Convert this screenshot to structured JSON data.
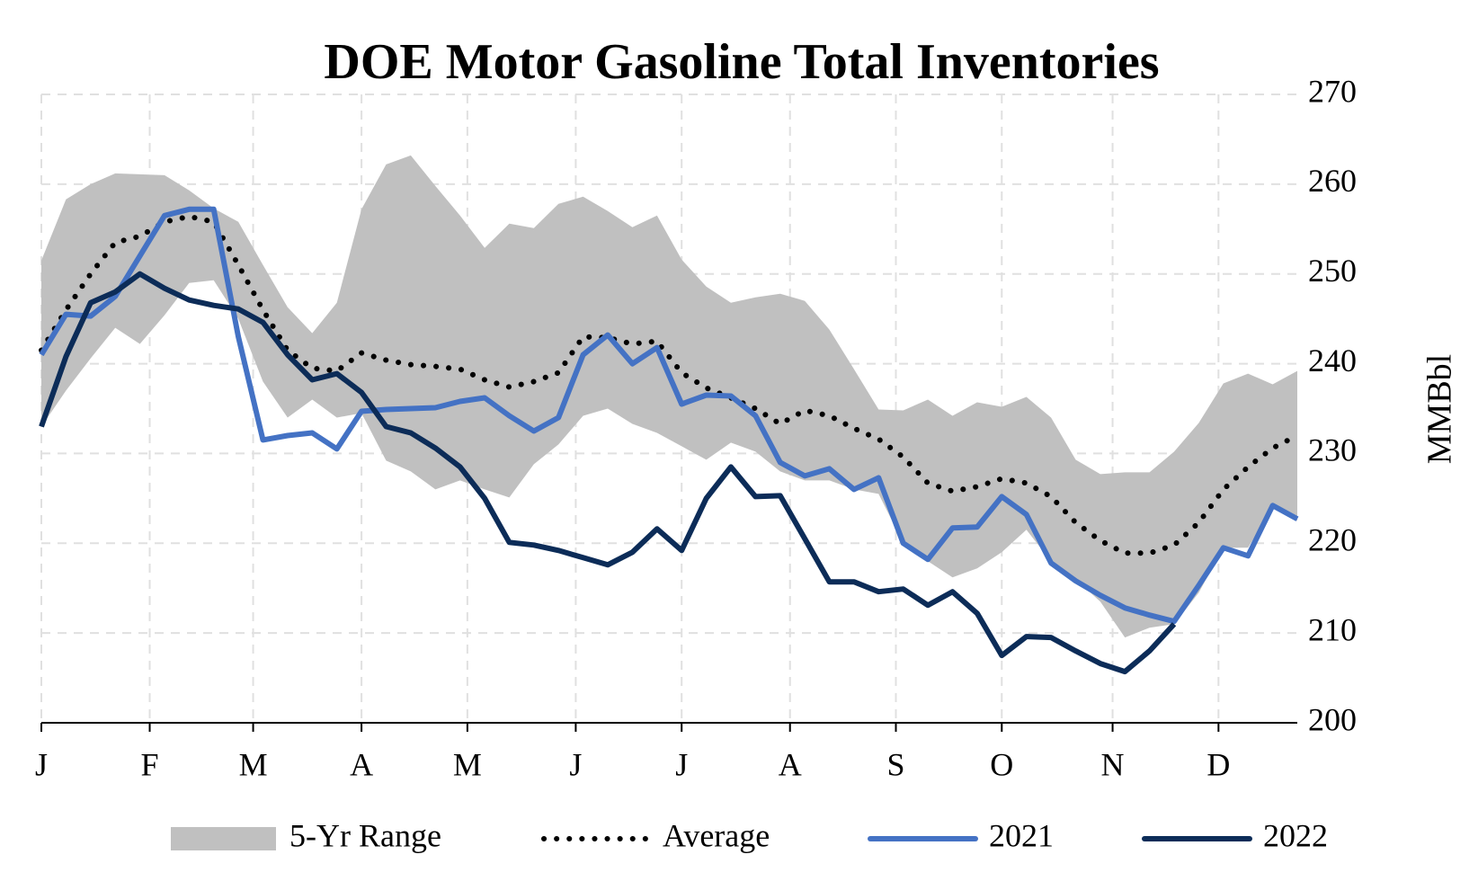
{
  "chart_data": {
    "type": "line",
    "title": "DOE Motor Gasoline Total Inventories",
    "y_label": "MMBbl",
    "x": [
      1,
      2,
      3,
      4,
      5,
      6,
      7,
      8,
      9,
      10,
      11,
      12,
      13,
      14,
      15,
      16,
      17,
      18,
      19,
      20,
      21,
      22,
      23,
      24,
      25,
      26,
      27,
      28,
      29,
      30,
      31,
      32,
      33,
      34,
      35,
      36,
      37,
      38,
      39,
      40,
      41,
      42,
      43,
      44,
      45,
      46,
      47,
      48,
      49,
      50,
      51,
      52
    ],
    "xlim": [
      1,
      52
    ],
    "xticks": [
      {
        "value": 1,
        "label": "J"
      },
      {
        "value": 5.4,
        "label": "F"
      },
      {
        "value": 9.6,
        "label": "M"
      },
      {
        "value": 14,
        "label": "A"
      },
      {
        "value": 18.3,
        "label": "M"
      },
      {
        "value": 22.7,
        "label": "J"
      },
      {
        "value": 27,
        "label": "J"
      },
      {
        "value": 31.4,
        "label": "A"
      },
      {
        "value": 35.7,
        "label": "S"
      },
      {
        "value": 40,
        "label": "O"
      },
      {
        "value": 44.5,
        "label": "N"
      },
      {
        "value": 48.8,
        "label": "D"
      }
    ],
    "ylim": [
      200,
      270
    ],
    "yticks": [
      200,
      210,
      220,
      230,
      240,
      250,
      260,
      270
    ],
    "y_axis_side": "right",
    "grid": true,
    "legend": "bottom",
    "series": [
      {
        "name": "5-Yr Range",
        "type": "range",
        "color": "#c0c0c0",
        "upper": [
          251.5,
          258.3,
          260,
          261.2,
          261.1,
          261,
          259.3,
          257.3,
          255.8,
          251,
          246.3,
          243.4,
          246.8,
          257.2,
          262.2,
          263.2,
          259.8,
          256.5,
          252.9,
          255.6,
          255.1,
          257.8,
          258.6,
          257,
          255.2,
          256.5,
          251.6,
          248.6,
          246.8,
          247.4,
          247.8,
          247,
          243.8,
          239.4,
          234.9,
          234.8,
          236,
          234.2,
          235.7,
          235.2,
          236.3,
          234,
          229.3,
          227.7,
          227.9,
          227.9,
          230.2,
          233.4,
          237.8,
          238.9,
          237.7,
          239.2
        ],
        "lower": [
          233,
          237,
          240.6,
          244,
          242.2,
          245.4,
          249,
          249.3,
          245,
          238,
          234,
          236,
          234,
          234.5,
          229.2,
          228,
          226,
          227,
          226,
          225.1,
          228.8,
          231,
          234.2,
          235,
          233.3,
          232.3,
          230.8,
          229.3,
          231.2,
          230.2,
          228,
          227,
          227,
          226,
          225.5,
          220,
          218,
          216.2,
          217.2,
          219,
          221.5,
          218,
          216,
          213.5,
          209.5,
          210.6,
          211,
          214.5,
          219.5,
          219.5,
          224,
          222.5
        ]
      },
      {
        "name": "Average",
        "type": "dotted",
        "color": "#000000",
        "values": [
          241.5,
          246,
          250,
          253.5,
          254.2,
          255.8,
          256.4,
          255.8,
          251,
          246,
          241.5,
          239.5,
          239.2,
          241.2,
          240.4,
          239.9,
          239.7,
          239.4,
          238.2,
          237.4,
          238,
          239,
          243,
          242.9,
          242.2,
          242.5,
          239,
          237.3,
          236.2,
          235,
          233.3,
          234.8,
          234.2,
          232.8,
          231.6,
          229.6,
          226.7,
          225.8,
          226.3,
          227.2,
          226.7,
          225.2,
          222.3,
          220.3,
          218.9,
          218.9,
          219.8,
          222.3,
          226,
          228.5,
          230.6,
          232
        ]
      },
      {
        "name": "2021",
        "type": "solid",
        "color": "#4472c4",
        "values": [
          241,
          245.5,
          245.3,
          247.5,
          252,
          256.5,
          257.2,
          257.2,
          243,
          231.5,
          232,
          232.3,
          230.5,
          234.7,
          234.9,
          235,
          235.1,
          235.8,
          236.2,
          234.2,
          232.5,
          234,
          241,
          243.2,
          240,
          241.8,
          235.5,
          236.5,
          236.4,
          234.2,
          229,
          227.5,
          228.3,
          226,
          227.3,
          220,
          218.2,
          221.7,
          221.8,
          225.2,
          223.2,
          217.8,
          215.8,
          214.2,
          212.8,
          212,
          211.3,
          215.3,
          219.5,
          218.6,
          224.2,
          222.7
        ]
      },
      {
        "name": "2022",
        "type": "solid",
        "color": "#0c2c58",
        "values": [
          233,
          240.8,
          246.8,
          248,
          250,
          248.4,
          247.1,
          246.5,
          246.1,
          244.6,
          241,
          238.2,
          238.9,
          236.8,
          233,
          232.3,
          230.6,
          228.5,
          225,
          220.1,
          219.8,
          219.2,
          218.4,
          217.6,
          219,
          221.6,
          219.2,
          225,
          228.5,
          225.2,
          225.3,
          220.5,
          215.7,
          215.7,
          214.6,
          214.9,
          213.1,
          214.6,
          212.2,
          207.5,
          209.6,
          209.5,
          208,
          206.6,
          205.7,
          208,
          211,
          null,
          null,
          null,
          null,
          null
        ]
      }
    ]
  }
}
